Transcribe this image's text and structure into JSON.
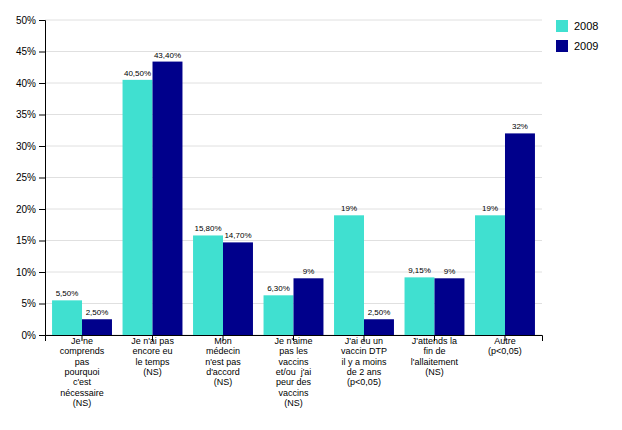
{
  "chart_data": {
    "type": "bar",
    "categories": [
      "Je ne\ncomprends\npas\npourquoi\nc'est\nnécessaire\n(NS)",
      "Je n'ai pas\nencore eu\nle temps\n(NS)",
      "Mon\nmédecin\nn'est pas\nd'accord\n(NS)",
      "Je n'aime\npas les\nvaccins\net/ou  j'ai\npeur des\nvaccins\n(NS)",
      "J'ai eu un\nvaccin DTP\nil y a moins\nde 2 ans\n(p<0,05)",
      "J'attends la\nfin de\nl'allaitement\n(NS)",
      "Autre\n(p<0,05)"
    ],
    "series": [
      {
        "name": "2008",
        "color": "#40E0D0",
        "values": [
          5.5,
          40.5,
          15.8,
          6.3,
          19.0,
          9.15,
          19.0
        ],
        "value_labels": [
          "5,50%",
          "40,50%",
          "15,80%",
          "6,30%",
          "19%",
          "9,15%",
          "19%"
        ]
      },
      {
        "name": "2009",
        "color": "#00008B",
        "values": [
          2.5,
          43.4,
          14.7,
          9.0,
          2.5,
          9.0,
          32.0
        ],
        "value_labels": [
          "2,50%",
          "43,40%",
          "14,70%",
          "9%",
          "2,50%",
          "9%",
          "32%"
        ]
      }
    ],
    "ylim": [
      0,
      50
    ],
    "yticks": [
      {
        "value": 0,
        "label": "0%"
      },
      {
        "value": 5,
        "label": "5%"
      },
      {
        "value": 10,
        "label": "10%"
      },
      {
        "value": 15,
        "label": "15%"
      },
      {
        "value": 20,
        "label": "20%"
      },
      {
        "value": 25,
        "label": "25%"
      },
      {
        "value": 30,
        "label": "30%"
      },
      {
        "value": 35,
        "label": "35%"
      },
      {
        "value": 40,
        "label": "40%"
      },
      {
        "value": 45,
        "label": "45%"
      },
      {
        "value": 50,
        "label": "50%"
      }
    ],
    "grid": true,
    "legend": "upper right",
    "data_labels": true
  }
}
